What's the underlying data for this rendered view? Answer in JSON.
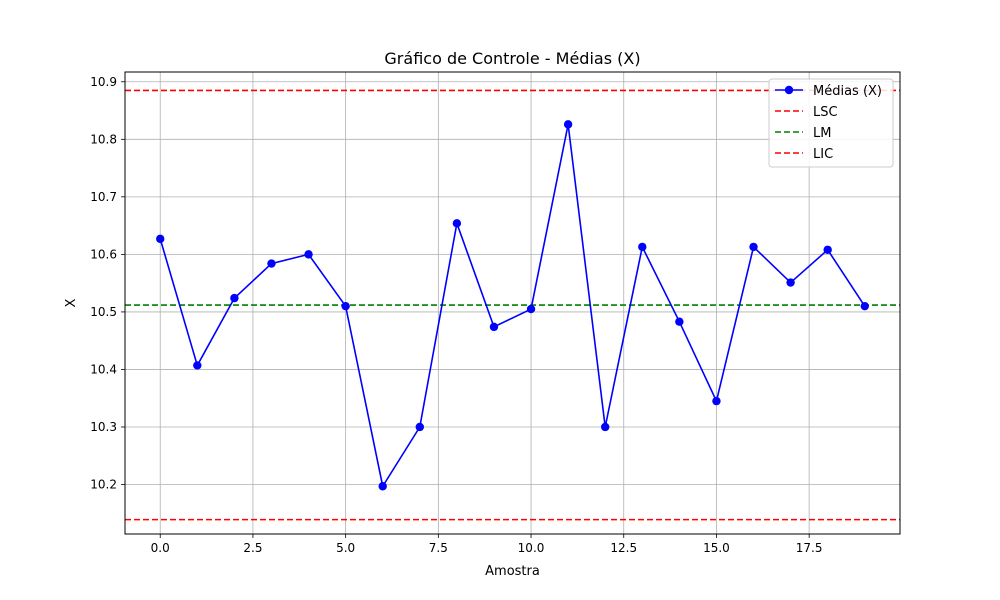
{
  "chart_data": {
    "type": "line",
    "title": "Gráfico de Controle - Médias (X)",
    "xlabel": "Amostra",
    "ylabel": "X",
    "xlim": [
      -0.95,
      19.95
    ],
    "ylim": [
      10.114,
      10.917
    ],
    "xticks": [
      0.0,
      2.5,
      5.0,
      7.5,
      10.0,
      12.5,
      15.0,
      17.5
    ],
    "xtick_labels": [
      "0.0",
      "2.5",
      "5.0",
      "7.5",
      "10.0",
      "12.5",
      "15.0",
      "17.5"
    ],
    "yticks": [
      10.2,
      10.3,
      10.4,
      10.5,
      10.6,
      10.7,
      10.8,
      10.9
    ],
    "ytick_labels": [
      "10.2",
      "10.3",
      "10.4",
      "10.5",
      "10.6",
      "10.7",
      "10.8",
      "10.9"
    ],
    "grid": true,
    "legend_position": "top-right",
    "series": [
      {
        "name": "Médias (X)",
        "color": "#0000ff",
        "marker": "circle",
        "x": [
          0,
          1,
          2,
          3,
          4,
          5,
          6,
          7,
          8,
          9,
          10,
          11,
          12,
          13,
          14,
          15,
          16,
          17,
          18,
          19
        ],
        "values": [
          10.627,
          10.407,
          10.524,
          10.584,
          10.6,
          10.51,
          10.197,
          10.3,
          10.654,
          10.474,
          10.505,
          10.826,
          10.3,
          10.613,
          10.483,
          10.345,
          10.613,
          10.551,
          10.608,
          10.51
        ]
      }
    ],
    "reference_lines": [
      {
        "name": "LSC",
        "value": 10.885,
        "color": "#ff0000",
        "style": "dashed"
      },
      {
        "name": "LM",
        "value": 10.512,
        "color": "#008000",
        "style": "dashed"
      },
      {
        "name": "LIC",
        "value": 10.139,
        "color": "#ff0000",
        "style": "dashed"
      }
    ]
  }
}
